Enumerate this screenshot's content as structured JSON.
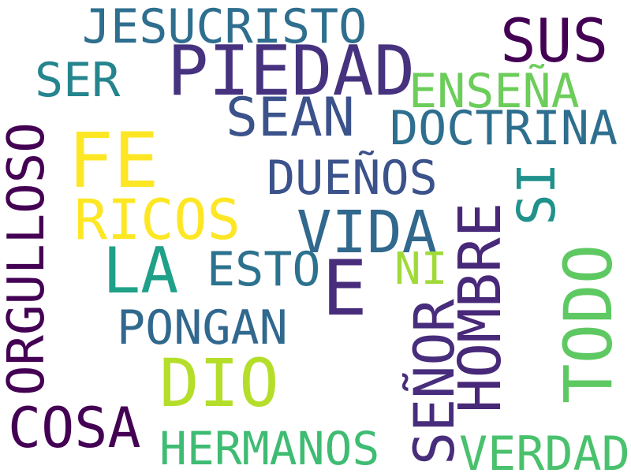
{
  "words": [
    {
      "text": "JESUCRISTO",
      "color": "#2e6e8e"
    },
    {
      "text": "SUS",
      "color": "#440154"
    },
    {
      "text": "PIEDAD",
      "color": "#46327e"
    },
    {
      "text": "SER",
      "color": "#25858e"
    },
    {
      "text": "ENSEÑA",
      "color": "#6ccd5a"
    },
    {
      "text": "SEAN",
      "color": "#3b528b"
    },
    {
      "text": "DOCTRINA",
      "color": "#2e6e8e"
    },
    {
      "text": "FE",
      "color": "#fde725"
    },
    {
      "text": "DUEÑOS",
      "color": "#3b528b"
    },
    {
      "text": "SI",
      "color": "#21918c"
    },
    {
      "text": "ORGULLOSO",
      "color": "#440154"
    },
    {
      "text": "RICOS",
      "color": "#fde725"
    },
    {
      "text": "VIDA",
      "color": "#31688e"
    },
    {
      "text": "HOMBRE",
      "color": "#482878"
    },
    {
      "text": "LA",
      "color": "#1fa088"
    },
    {
      "text": "ESTO",
      "color": "#2c728e"
    },
    {
      "text": "E",
      "color": "#472d7b"
    },
    {
      "text": "NI",
      "color": "#a0da39"
    },
    {
      "text": "TODO",
      "color": "#5ec962"
    },
    {
      "text": "PONGAN",
      "color": "#31688e"
    },
    {
      "text": "SEÑOR",
      "color": "#472d7b"
    },
    {
      "text": "DIO",
      "color": "#b5de2b"
    },
    {
      "text": "COSA",
      "color": "#440154"
    },
    {
      "text": "HERMANOS",
      "color": "#3fbc73"
    },
    {
      "text": "VERDAD",
      "color": "#4ac16d"
    }
  ]
}
